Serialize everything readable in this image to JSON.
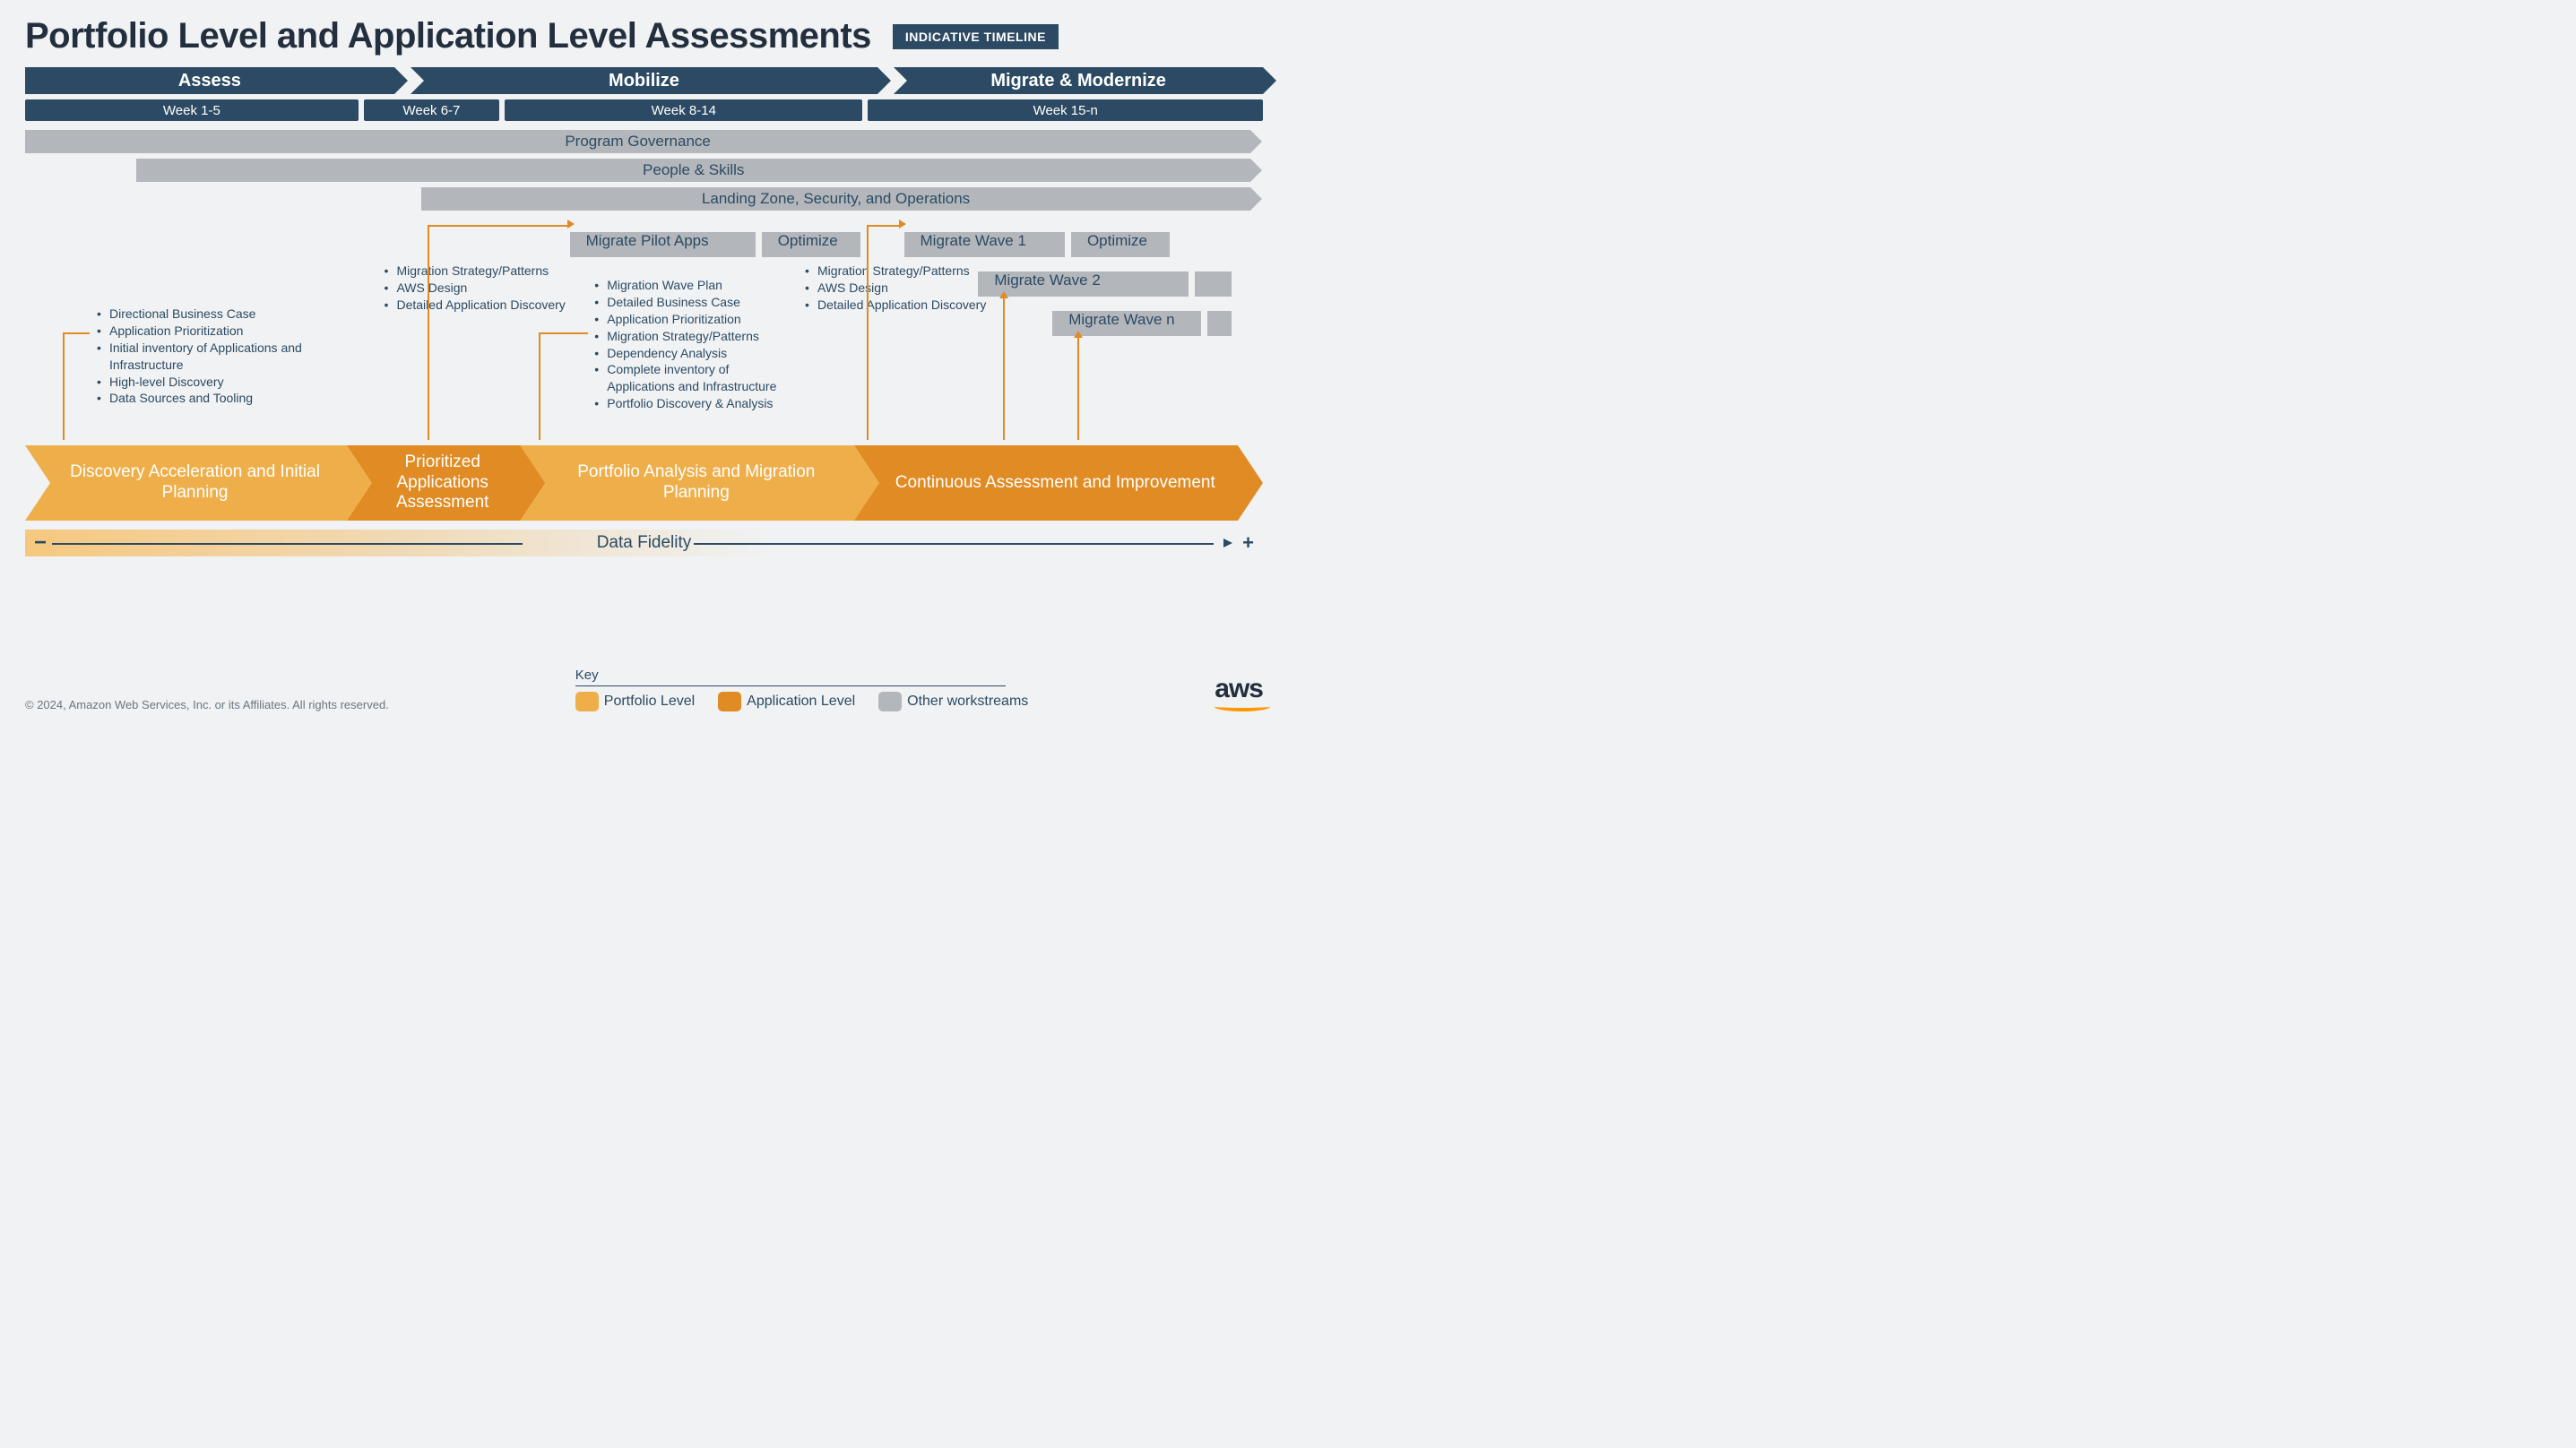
{
  "title": "Portfolio Level and Application Level Assessments",
  "badge": "INDICATIVE TIMELINE",
  "colors": {
    "background": "#f0f2f3",
    "navy": "#2c4a63",
    "grey": "#b3b7bb",
    "portfolio": "#eeaf4b",
    "application": "#e08b23",
    "text": "#2c4a63",
    "aws_orange": "#ff9900"
  },
  "phases": [
    {
      "label": "Assess",
      "width_pct": 30
    },
    {
      "label": "Mobilize",
      "width_pct": 38
    },
    {
      "label": "Migrate & Modernize",
      "width_pct": 32
    }
  ],
  "weeks": [
    {
      "label": "Week 1-5",
      "width_pct": 27
    },
    {
      "label": "Week 6-7",
      "width_pct": 11
    },
    {
      "label": "Week 8-14",
      "width_pct": 29
    },
    {
      "label": "Week 15-n",
      "width_pct": 33
    }
  ],
  "workstreams": [
    {
      "label": "Program Governance",
      "offset_pct": 0
    },
    {
      "label": "People & Skills",
      "offset_pct": 9
    },
    {
      "label": "Landing Zone, Security, and Operations",
      "offset_pct": 32
    }
  ],
  "pilot_row": [
    {
      "label": "Migrate Pilot Apps",
      "left_pct": 44,
      "width_pct": 15
    },
    {
      "label": "Optimize",
      "left_pct": 59.5,
      "width_pct": 8
    },
    {
      "label": "Migrate Wave 1",
      "left_pct": 71,
      "width_pct": 13
    },
    {
      "label": "Optimize",
      "left_pct": 84.5,
      "width_pct": 8
    }
  ],
  "wave2": {
    "label": "Migrate Wave 2",
    "left_pct": 77,
    "width_pct": 15
  },
  "waven": {
    "label": "Migrate Wave n",
    "left_pct": 83,
    "width_pct": 12
  },
  "bullet_groups": {
    "discovery": [
      "Directional Business Case",
      "Application Prioritization",
      "Initial inventory of Applications and Infrastructure",
      "High-level Discovery",
      "Data Sources and Tooling"
    ],
    "prioritized": [
      "Migration Strategy/Patterns",
      "AWS Design",
      "Detailed Application Discovery"
    ],
    "portfolio_analysis": [
      "Migration Wave Plan",
      "Detailed Business Case",
      "Application Prioritization",
      "Migration Strategy/Patterns",
      "Dependency Analysis",
      "Complete inventory of Applications and Infrastructure",
      "Portfolio Discovery & Analysis"
    ],
    "continuous": [
      "Migration Strategy/Patterns",
      "AWS Design",
      "Detailed Application Discovery"
    ]
  },
  "main_stages": [
    {
      "label": "Discovery Acceleration and Initial Planning",
      "color": "portfolio",
      "width_pct": 26
    },
    {
      "label": "Prioritized Applications Assessment",
      "color": "application",
      "width_pct": 14
    },
    {
      "label": "Portfolio Analysis and Migration Planning",
      "color": "portfolio",
      "width_pct": 27
    },
    {
      "label": "Continuous Assessment and Improvement",
      "color": "application",
      "width_pct": 33
    }
  ],
  "fidelity_label": "Data Fidelity",
  "key": {
    "title": "Key",
    "items": [
      {
        "label": "Portfolio Level",
        "color": "portfolio"
      },
      {
        "label": "Application Level",
        "color": "application"
      },
      {
        "label": "Other workstreams",
        "color": "grey"
      }
    ]
  },
  "copyright": "© 2024, Amazon Web Services, Inc. or its Affiliates. All rights reserved.",
  "logo_text": "aws"
}
